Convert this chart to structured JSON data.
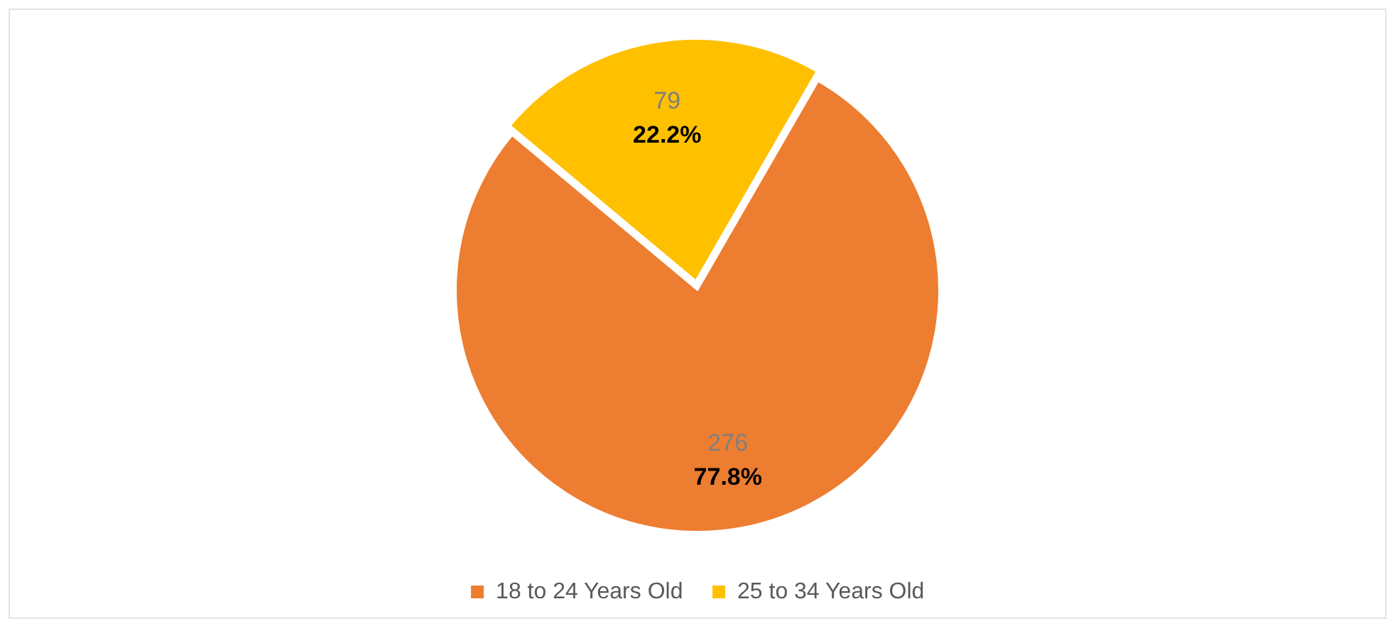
{
  "chart_data": {
    "type": "pie",
    "categories": [
      "18 to 24 Years Old",
      "25 to 34 Years Old"
    ],
    "values": [
      276,
      79
    ],
    "colors": [
      "#ed7d31",
      "#ffc000"
    ],
    "value_labels": [
      "276\n77.8%",
      "79\n22.2%"
    ],
    "legend": "bottom"
  }
}
